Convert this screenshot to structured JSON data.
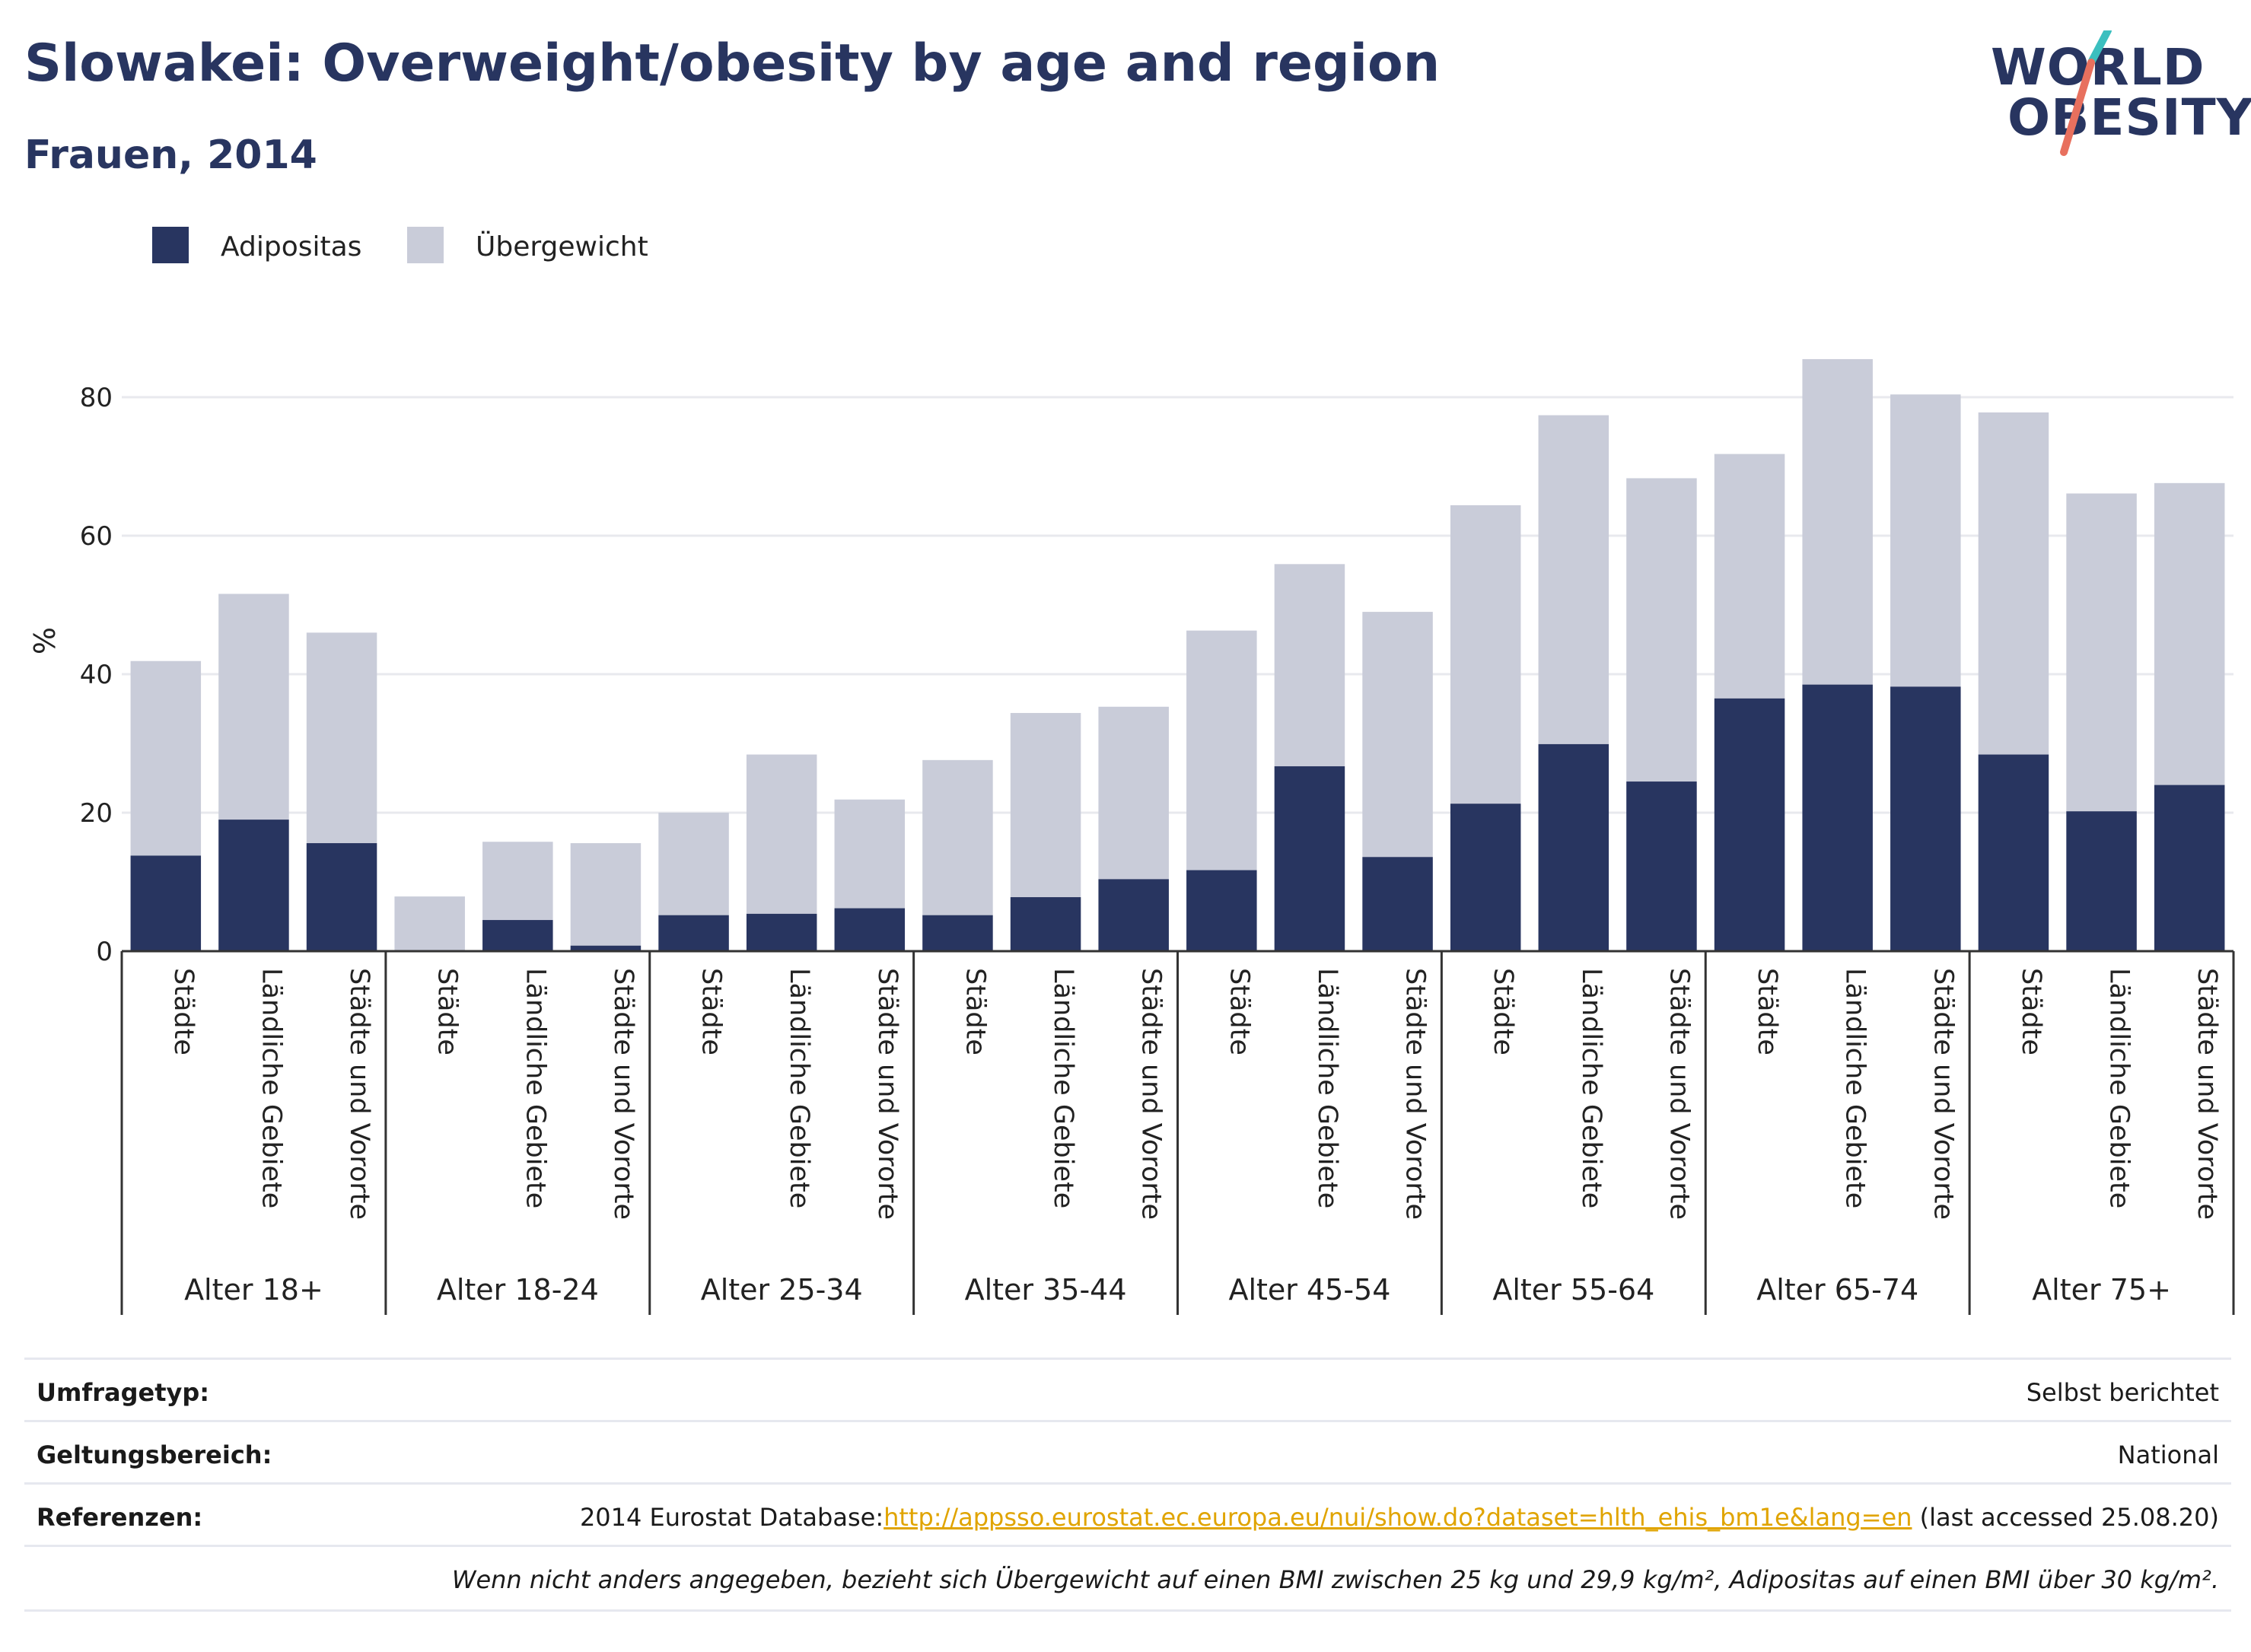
{
  "header": {
    "title": "Slowakei: Overweight/obesity by age and region",
    "subtitle": "Frauen, 2014",
    "logo_line1": "WORLD",
    "logo_line2": "OBESITY"
  },
  "chart_data": {
    "type": "bar",
    "stacked": true,
    "ylabel": "%",
    "ylim": [
      0,
      90
    ],
    "yticks": [
      0,
      20,
      40,
      60,
      80
    ],
    "grid": true,
    "legend_position": "top-left",
    "groups": [
      {
        "label": "Alter 18+",
        "categories": [
          "Städte",
          "Ländliche Gebiete",
          "Städte und Vororte"
        ]
      },
      {
        "label": "Alter 18-24",
        "categories": [
          "Städte",
          "Ländliche Gebiete",
          "Städte und Vororte"
        ]
      },
      {
        "label": "Alter 25-34",
        "categories": [
          "Städte",
          "Ländliche Gebiete",
          "Städte und Vororte"
        ]
      },
      {
        "label": "Alter 35-44",
        "categories": [
          "Städte",
          "Ländliche Gebiete",
          "Städte und Vororte"
        ]
      },
      {
        "label": "Alter 45-54",
        "categories": [
          "Städte",
          "Ländliche Gebiete",
          "Städte und Vororte"
        ]
      },
      {
        "label": "Alter 55-64",
        "categories": [
          "Städte",
          "Ländliche Gebiete",
          "Städte und Vororte"
        ]
      },
      {
        "label": "Alter 65-74",
        "categories": [
          "Städte",
          "Ländliche Gebiete",
          "Städte und Vororte"
        ]
      },
      {
        "label": "Alter 75+",
        "categories": [
          "Städte",
          "Ländliche Gebiete",
          "Städte und Vororte"
        ]
      }
    ],
    "series": [
      {
        "name": "Adipositas",
        "color": "#283560",
        "values": [
          13.8,
          19.0,
          15.6,
          0.0,
          4.5,
          0.8,
          5.2,
          5.4,
          6.2,
          5.2,
          7.8,
          10.4,
          11.7,
          26.7,
          13.6,
          21.3,
          29.9,
          24.5,
          36.5,
          38.5,
          38.2,
          28.4,
          20.2,
          24.0
        ]
      },
      {
        "name": "Übergewicht",
        "color": "#c9ccd9",
        "values": [
          28.1,
          32.6,
          30.4,
          7.9,
          11.3,
          14.8,
          14.8,
          23.0,
          15.7,
          22.4,
          26.6,
          24.9,
          34.6,
          29.2,
          35.4,
          43.1,
          47.5,
          43.8,
          35.3,
          47.0,
          42.2,
          49.4,
          45.9,
          43.6
        ]
      }
    ]
  },
  "info_table": [
    {
      "label": "Umfragetyp:",
      "value": "Selbst berichtet"
    },
    {
      "label": "Geltungsbereich:",
      "value": "National"
    },
    {
      "label": "Referenzen:",
      "value_prefix": "2014 Eurostat Database:",
      "link": "http://appsso.eurostat.ec.europa.eu/nui/show.do?dataset=hlth_ehis_bm1e&lang=en",
      "value_suffix": " (last accessed 25.08.20)"
    },
    {
      "label": "",
      "note": "Wenn nicht anders angegeben, bezieht sich Übergewicht auf einen BMI zwischen 25 kg und 29,9 kg/m², Adipositas auf einen BMI über 30 kg/m²."
    }
  ]
}
